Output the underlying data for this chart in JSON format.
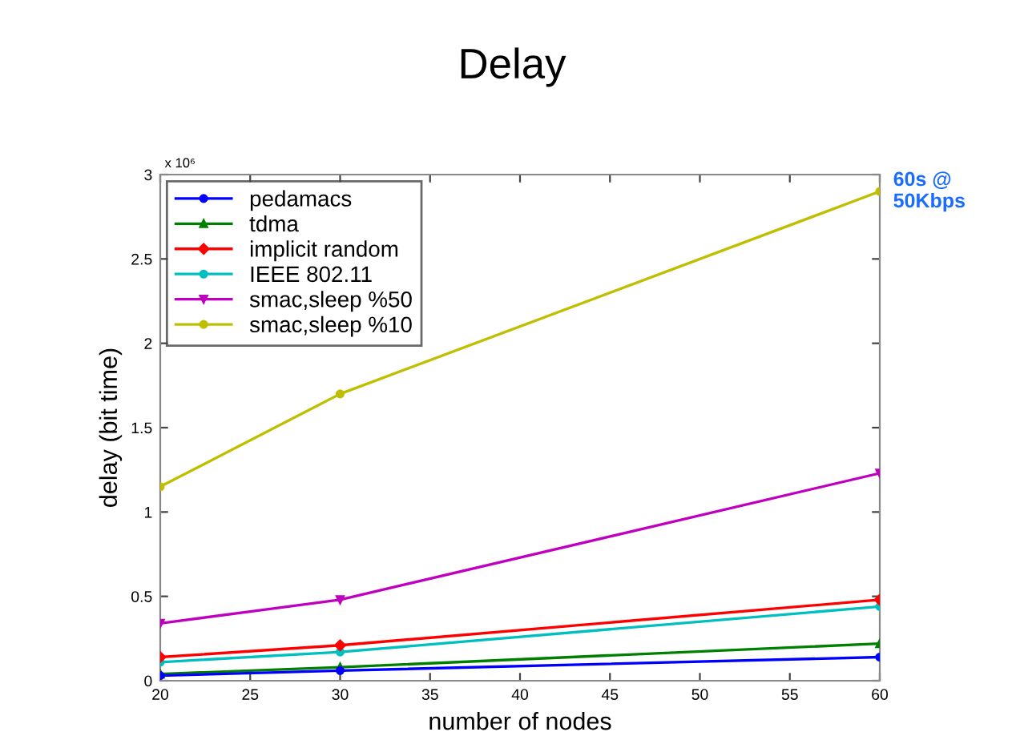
{
  "chart_data": {
    "type": "line",
    "title": "Delay",
    "xlabel": "number of nodes",
    "ylabel": "delay (bit time)",
    "annotations": [
      "x 10⁶",
      {
        "text": "60s @\n50Kbps",
        "x": 60,
        "y": 2.9
      }
    ],
    "x": [
      20,
      30,
      60
    ],
    "series": [
      {
        "name": "pedamacs",
        "color": "#0000ff",
        "marker": "circle",
        "values": [
          0.03,
          0.06,
          0.14
        ]
      },
      {
        "name": "tdma",
        "color": "#008000",
        "marker": "triangle",
        "values": [
          0.04,
          0.08,
          0.22
        ]
      },
      {
        "name": "implicit random",
        "color": "#ff0000",
        "marker": "diamond",
        "values": [
          0.14,
          0.21,
          0.48
        ]
      },
      {
        "name": "IEEE 802.11",
        "color": "#00bfbf",
        "marker": "circle",
        "values": [
          0.11,
          0.17,
          0.44
        ]
      },
      {
        "name": "smac,sleep %50",
        "color": "#bf00bf",
        "marker": "triangle_down",
        "values": [
          0.34,
          0.48,
          1.23
        ]
      },
      {
        "name": "smac,sleep %10",
        "color": "#bfbf00",
        "marker": "circle",
        "values": [
          1.15,
          1.7,
          2.9
        ]
      }
    ],
    "xlim": [
      20,
      60
    ],
    "xticks": [
      20,
      25,
      30,
      35,
      40,
      45,
      50,
      55,
      60
    ],
    "ylim": [
      0,
      3
    ],
    "yticks": [
      0,
      0.5,
      1,
      1.5,
      2,
      2.5,
      3
    ],
    "grid": false,
    "legend": "top left",
    "line_style": "solid"
  }
}
